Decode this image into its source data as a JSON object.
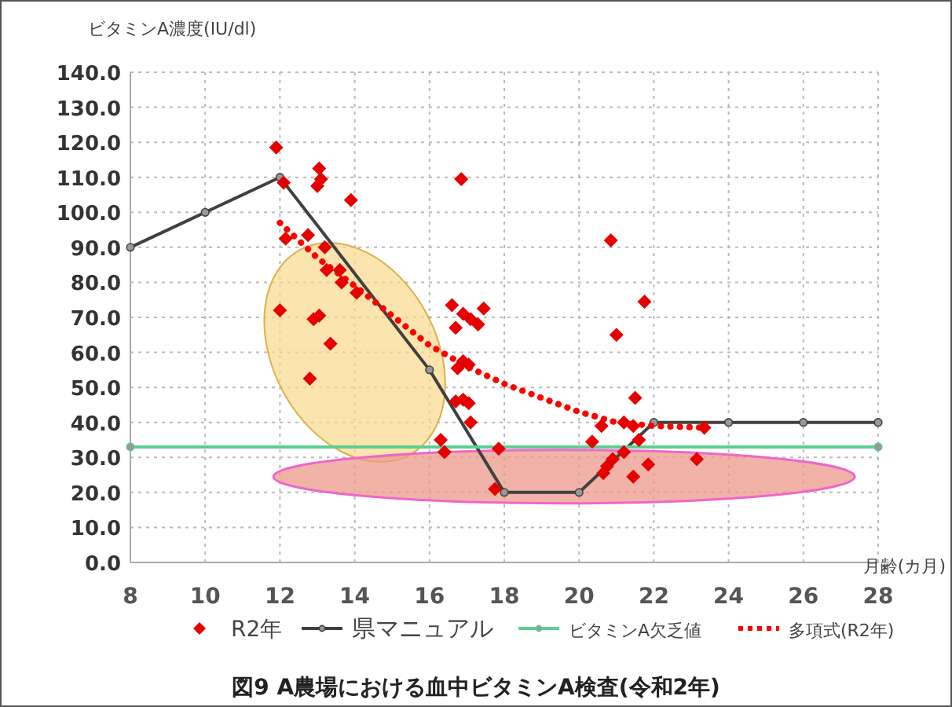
{
  "chart_data": {
    "type": "scatter",
    "title": "図9 A農場における血中ビタミンA検査(令和2年)",
    "xlabel": "月齢(カ月)",
    "ylabel": "ビタミンA濃度(IU/dl)",
    "xlim": [
      8,
      28
    ],
    "xticks": [
      8,
      10,
      12,
      14,
      16,
      18,
      20,
      22,
      24,
      26,
      28
    ],
    "ylim": [
      0,
      140
    ],
    "yticks": [
      {
        "value": 0,
        "label": "0.0"
      },
      {
        "value": 10,
        "label": "10.0"
      },
      {
        "value": 20,
        "label": "20.0"
      },
      {
        "value": 30,
        "label": "30.0"
      },
      {
        "value": 40,
        "label": "40.0"
      },
      {
        "value": 50,
        "label": "50.0"
      },
      {
        "value": 60,
        "label": "60.0"
      },
      {
        "value": 70,
        "label": "70.0"
      },
      {
        "value": 80,
        "label": "80.0"
      },
      {
        "value": 90,
        "label": "90.0"
      },
      {
        "value": 100,
        "label": "100.0"
      },
      {
        "value": 110,
        "label": "110.0"
      },
      {
        "value": 120,
        "label": "120.0"
      },
      {
        "value": 130,
        "label": "130.0"
      },
      {
        "value": 140,
        "label": "140.0"
      }
    ],
    "grid": true,
    "legend": "bottom",
    "series": [
      {
        "name": "R2年",
        "type": "scatter",
        "color": "#e60000",
        "marker": "diamond",
        "x": [
          11.9,
          12.1,
          13.05,
          13.1,
          13.0,
          13.9,
          12.15,
          12.75,
          13.2,
          13.6,
          12.0,
          12.9,
          13.05,
          13.35,
          12.8,
          13.25,
          13.65,
          14.05,
          16.85,
          20.85,
          21.75,
          16.6,
          17.45,
          16.9,
          17.1,
          17.3,
          16.7,
          21.0,
          16.9,
          17.05,
          16.75,
          16.7,
          16.9,
          17.05,
          17.1,
          21.5,
          20.6,
          21.2,
          21.45,
          16.3,
          16.4,
          17.85,
          20.35,
          21.6,
          21.2,
          20.9,
          20.75,
          20.65,
          17.75,
          21.45,
          21.85,
          23.15,
          23.35
        ],
        "values": [
          118.5,
          108.5,
          112.5,
          109.5,
          107.5,
          103.5,
          92.5,
          93.5,
          90,
          83.5,
          72,
          69.5,
          70.5,
          62.5,
          52.5,
          83.5,
          80,
          77,
          109.5,
          92,
          74.5,
          73.5,
          72.5,
          71,
          69.5,
          68,
          67,
          65,
          57.5,
          56.5,
          55.5,
          46,
          46.5,
          45.5,
          40,
          47,
          39,
          40,
          39,
          35,
          31.5,
          32.5,
          34.5,
          35,
          31.5,
          29.5,
          27.5,
          25.5,
          21,
          24.5,
          28,
          29.5,
          38.5
        ]
      },
      {
        "name": "県マニュアル",
        "type": "line",
        "color": "#404040",
        "marker": "circle",
        "line_style": "solid",
        "x": [
          8,
          10,
          12,
          16,
          18,
          20,
          22,
          24,
          26,
          28
        ],
        "values": [
          90,
          100,
          110,
          55,
          20,
          20,
          40,
          40,
          40,
          40
        ]
      },
      {
        "name": "ビタミンA欠乏値",
        "type": "line",
        "color": "#5ccf8f",
        "marker": "circle",
        "line_style": "solid",
        "x": [
          8,
          28
        ],
        "values": [
          33,
          33
        ]
      },
      {
        "name": "多項式(R2年)",
        "type": "line",
        "color": "#ff0000",
        "marker": "none",
        "line_style": "dotted",
        "x": [
          12,
          13,
          14,
          15,
          16,
          17,
          18,
          19,
          20,
          21,
          22,
          23.3
        ],
        "values": [
          97,
          87,
          79,
          70.5,
          62,
          56,
          51,
          47,
          43,
          40,
          39,
          38.5
        ]
      }
    ]
  }
}
